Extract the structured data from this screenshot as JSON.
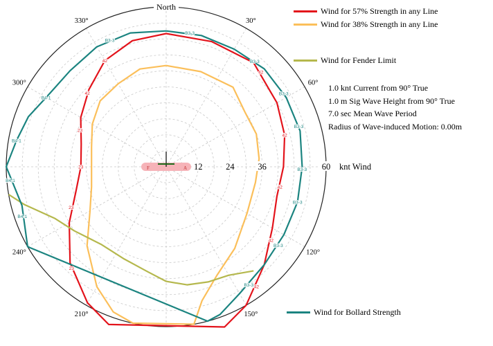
{
  "chart_data": {
    "type": "polar-line",
    "north_label": "North",
    "angle_tick_labels": [
      {
        "angle": 30,
        "label": "30°"
      },
      {
        "angle": 60,
        "label": "60°"
      },
      {
        "angle": 120,
        "label": "120°"
      },
      {
        "angle": 150,
        "label": "150°"
      },
      {
        "angle": 210,
        "label": "210°"
      },
      {
        "angle": 240,
        "label": "240°"
      },
      {
        "angle": 300,
        "label": "300°"
      },
      {
        "angle": 330,
        "label": "330°"
      }
    ],
    "radial_tick_labels": [
      {
        "value": 12,
        "label": "12"
      },
      {
        "value": 24,
        "label": "24"
      },
      {
        "value": 36,
        "label": "36"
      },
      {
        "value": 60,
        "label": "60"
      }
    ],
    "radial_unit_label": "knt Wind",
    "rmax": 60,
    "ring_step": 6,
    "series": [
      {
        "name": "Wind for 57% Strength in any Line",
        "color": "#e3131b",
        "points": [
          [
            0,
            50
          ],
          [
            20,
            50
          ],
          [
            40,
            51
          ],
          [
            60,
            48
          ],
          [
            75,
            46
          ],
          [
            90,
            44
          ],
          [
            105,
            43
          ],
          [
            120,
            46
          ],
          [
            135,
            52
          ],
          [
            150,
            60
          ],
          [
            160,
            64
          ],
          [
            200,
            63
          ],
          [
            210,
            59
          ],
          [
            225,
            51
          ],
          [
            240,
            42
          ],
          [
            255,
            35
          ],
          [
            270,
            32
          ],
          [
            285,
            33
          ],
          [
            300,
            37
          ],
          [
            315,
            41
          ],
          [
            330,
            46
          ],
          [
            345,
            49
          ],
          [
            360,
            50
          ]
        ],
        "labels": [
          {
            "angle": 45,
            "text": "42"
          },
          {
            "angle": 75,
            "text": "42"
          },
          {
            "angle": 100,
            "text": "42"
          },
          {
            "angle": 125,
            "text": "42"
          },
          {
            "angle": 143,
            "text": "42"
          },
          {
            "angle": 223,
            "text": "23"
          },
          {
            "angle": 247,
            "text": "23"
          },
          {
            "angle": 270,
            "text": "23"
          },
          {
            "angle": 293,
            "text": "23"
          },
          {
            "angle": 313,
            "text": "42"
          },
          {
            "angle": 330,
            "text": "42"
          }
        ]
      },
      {
        "name": "Wind for 38% Strength in any Line",
        "color": "#fbbf5a",
        "points": [
          [
            0,
            38
          ],
          [
            20,
            38
          ],
          [
            40,
            39
          ],
          [
            55,
            36
          ],
          [
            70,
            36
          ],
          [
            85,
            35
          ],
          [
            100,
            34
          ],
          [
            120,
            35
          ],
          [
            140,
            40
          ],
          [
            155,
            45
          ],
          [
            165,
            52
          ],
          [
            170,
            60
          ],
          [
            192,
            60
          ],
          [
            200,
            58
          ],
          [
            210,
            52
          ],
          [
            225,
            42
          ],
          [
            240,
            33
          ],
          [
            255,
            29
          ],
          [
            270,
            28
          ],
          [
            285,
            29
          ],
          [
            300,
            32
          ],
          [
            315,
            35
          ],
          [
            330,
            36
          ],
          [
            345,
            38
          ],
          [
            360,
            38
          ]
        ]
      },
      {
        "name": "Wind for Fender Limit",
        "color": "#b5b84d",
        "points": [
          [
            260,
            60
          ],
          [
            255,
            55
          ],
          [
            245,
            46
          ],
          [
            235,
            42
          ],
          [
            220,
            38
          ],
          [
            205,
            38
          ],
          [
            190,
            40
          ],
          [
            180,
            43
          ],
          [
            170,
            45
          ],
          [
            160,
            46
          ],
          [
            150,
            47
          ],
          [
            140,
            51
          ]
        ]
      },
      {
        "name": "Wind for Bollard Strength",
        "color": "#1b8480",
        "points": [
          [
            0,
            51
          ],
          [
            15,
            51
          ],
          [
            30,
            51
          ],
          [
            45,
            52
          ],
          [
            60,
            52
          ],
          [
            75,
            52
          ],
          [
            90,
            51
          ],
          [
            105,
            51
          ],
          [
            120,
            51
          ],
          [
            135,
            52
          ],
          [
            150,
            55
          ],
          [
            160,
            59
          ],
          [
            165,
            60
          ],
          [
            240,
            60
          ],
          [
            255,
            56
          ],
          [
            270,
            60
          ],
          [
            280,
            57
          ],
          [
            290,
            55
          ],
          [
            300,
            52
          ],
          [
            315,
            51
          ],
          [
            330,
            52
          ],
          [
            345,
            52
          ],
          [
            360,
            51
          ]
        ],
        "labels": [
          {
            "angle": 336,
            "text": "B3-3"
          },
          {
            "angle": 10,
            "text": "B3-3"
          },
          {
            "angle": 40,
            "text": "B3-3"
          },
          {
            "angle": 58,
            "text": "B3-3"
          },
          {
            "angle": 73,
            "text": "B3-3"
          },
          {
            "angle": 91,
            "text": "B3-3"
          },
          {
            "angle": 105,
            "text": "B3-3"
          },
          {
            "angle": 125,
            "text": "B3-3"
          },
          {
            "angle": 145,
            "text": "B3-3"
          },
          {
            "angle": 251,
            "text": "B4-1"
          },
          {
            "angle": 265,
            "text": "B4-1"
          },
          {
            "angle": 280,
            "text": "B4-1"
          },
          {
            "angle": 300,
            "text": "B4-1"
          }
        ]
      }
    ],
    "vessel_labels": {
      "left": "F",
      "right": "A"
    }
  },
  "legend": [
    {
      "label": "Wind for 57% Strength in any Line",
      "color": "#e3131b"
    },
    {
      "label": "Wind for 38% Strength in any Line",
      "color": "#fbbf5a"
    },
    {
      "label": "Wind for Fender Limit",
      "color": "#b5b84d"
    },
    {
      "label": "Wind for Bollard Strength",
      "color": "#1b8480"
    }
  ],
  "conditions": [
    "1.0 knt Current from 90° True",
    "1.0 m Sig Wave Height from 90° True",
    "7.0 sec Mean Wave Period",
    "Radius of Wave-induced Motion:  0.00m"
  ]
}
